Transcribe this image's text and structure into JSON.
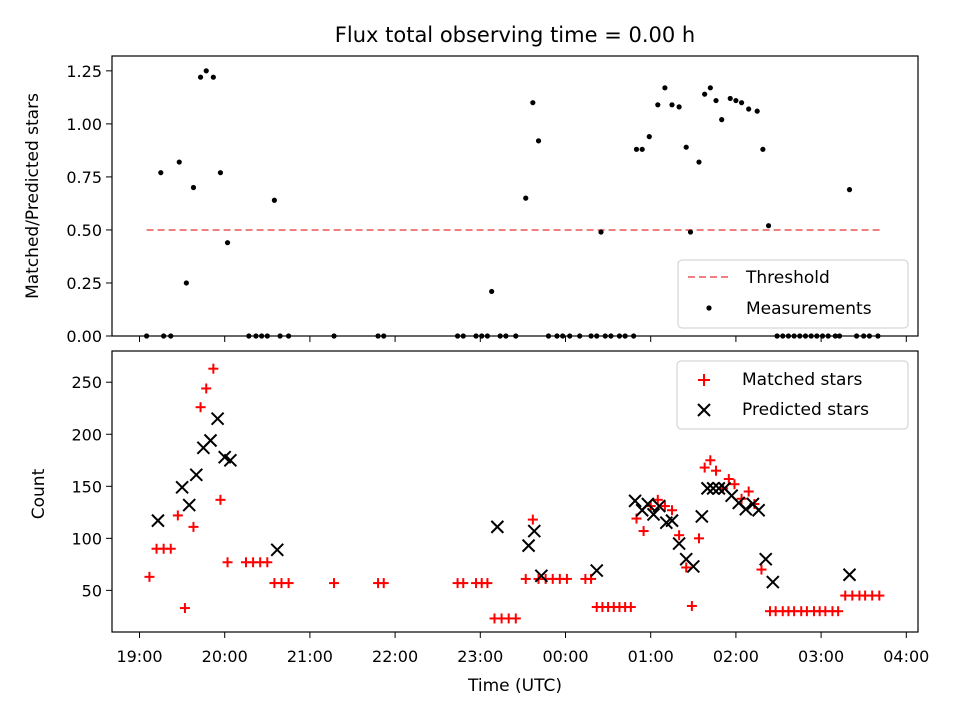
{
  "chart_data": [
    {
      "type": "scatter",
      "title": "Flux total observing time = 0.00 h",
      "xlabel": "",
      "ylabel": "Matched/Predicted stars",
      "ylim": [
        0,
        1.32
      ],
      "yticks": [
        0,
        0.25,
        0.5,
        0.75,
        1.0,
        1.25
      ],
      "ytick_labels": [
        "0.00",
        "0.25",
        "0.50",
        "0.75",
        "1.00",
        "1.25"
      ],
      "legend_position": "lower-right",
      "threshold": {
        "name": "Threshold",
        "value": 0.5,
        "x_range": [
          "19:05",
          "23:55",
          "03:42"
        ],
        "color": "#f08080"
      },
      "series": [
        {
          "name": "Measurements",
          "color": "#000000",
          "marker": "dot",
          "points": [
            [
              "19:05",
              0
            ],
            [
              "19:15",
              0.77
            ],
            [
              "19:17",
              0
            ],
            [
              "19:22",
              0
            ],
            [
              "19:28",
              0.82
            ],
            [
              "19:33",
              0.25
            ],
            [
              "19:38",
              0.7
            ],
            [
              "19:43",
              1.22
            ],
            [
              "19:47",
              1.25
            ],
            [
              "19:52",
              1.22
            ],
            [
              "19:57",
              0.77
            ],
            [
              "20:02",
              0.44
            ],
            [
              "20:17",
              0
            ],
            [
              "20:22",
              0
            ],
            [
              "20:26",
              0
            ],
            [
              "20:30",
              0
            ],
            [
              "20:35",
              0.64
            ],
            [
              "20:39",
              0
            ],
            [
              "20:45",
              0
            ],
            [
              "21:17",
              0
            ],
            [
              "21:48",
              0
            ],
            [
              "21:52",
              0
            ],
            [
              "22:44",
              0
            ],
            [
              "22:48",
              0
            ],
            [
              "22:57",
              0
            ],
            [
              "23:01",
              0
            ],
            [
              "23:05",
              0
            ],
            [
              "23:08",
              0.21
            ],
            [
              "23:14",
              0
            ],
            [
              "23:18",
              0
            ],
            [
              "23:25",
              0
            ],
            [
              "23:32",
              0.65
            ],
            [
              "23:37",
              1.1
            ],
            [
              "23:41",
              0.92
            ],
            [
              "23:48",
              0
            ],
            [
              "23:54",
              0
            ],
            [
              "23:58",
              0
            ],
            [
              "00:03",
              0
            ],
            [
              "00:10",
              0
            ],
            [
              "00:18",
              0
            ],
            [
              "00:22",
              0
            ],
            [
              "00:25",
              0.49
            ],
            [
              "00:28",
              0
            ],
            [
              "00:32",
              0
            ],
            [
              "00:38",
              0
            ],
            [
              "00:42",
              0
            ],
            [
              "00:48",
              0
            ],
            [
              "00:50",
              0.88
            ],
            [
              "00:54",
              0.88
            ],
            [
              "00:59",
              0.94
            ],
            [
              "01:05",
              1.09
            ],
            [
              "01:10",
              1.17
            ],
            [
              "01:15",
              1.09
            ],
            [
              "01:20",
              1.08
            ],
            [
              "01:25",
              0.89
            ],
            [
              "01:28",
              0.49
            ],
            [
              "01:34",
              0.82
            ],
            [
              "01:38",
              1.14
            ],
            [
              "01:42",
              1.17
            ],
            [
              "01:46",
              1.11
            ],
            [
              "01:50",
              1.02
            ],
            [
              "01:56",
              1.12
            ],
            [
              "02:00",
              1.11
            ],
            [
              "02:04",
              1.1
            ],
            [
              "02:09",
              1.07
            ],
            [
              "02:15",
              1.06
            ],
            [
              "02:19",
              0.88
            ],
            [
              "02:23",
              0.52
            ],
            [
              "02:29",
              0
            ],
            [
              "02:33",
              0
            ],
            [
              "02:37",
              0
            ],
            [
              "02:41",
              0
            ],
            [
              "02:45",
              0
            ],
            [
              "02:49",
              0
            ],
            [
              "02:53",
              0
            ],
            [
              "02:57",
              0
            ],
            [
              "03:01",
              0
            ],
            [
              "03:05",
              0
            ],
            [
              "03:10",
              0
            ],
            [
              "03:13",
              0
            ],
            [
              "03:20",
              0.69
            ],
            [
              "03:25",
              0
            ],
            [
              "03:30",
              0
            ],
            [
              "03:34",
              0
            ],
            [
              "03:40",
              0
            ]
          ]
        }
      ]
    },
    {
      "type": "scatter",
      "title": "",
      "xlabel": "Time (UTC)",
      "ylabel": "Count",
      "ylim": [
        10,
        280
      ],
      "yticks": [
        50,
        100,
        150,
        200,
        250
      ],
      "xticks": [
        "19:00",
        "20:00",
        "21:00",
        "22:00",
        "23:00",
        "00:00",
        "01:00",
        "02:00",
        "03:00",
        "04:00"
      ],
      "legend_position": "top-right",
      "series": [
        {
          "name": "Matched stars",
          "color": "#ff0000",
          "marker": "plus",
          "points": [
            [
              "19:07",
              63
            ],
            [
              "19:12",
              90
            ],
            [
              "19:17",
              90
            ],
            [
              "19:22",
              90
            ],
            [
              "19:27",
              122
            ],
            [
              "19:32",
              33
            ],
            [
              "19:38",
              111
            ],
            [
              "19:43",
              226
            ],
            [
              "19:47",
              244
            ],
            [
              "19:52",
              263
            ],
            [
              "19:57",
              137
            ],
            [
              "20:02",
              77
            ],
            [
              "20:15",
              77
            ],
            [
              "20:20",
              77
            ],
            [
              "20:25",
              77
            ],
            [
              "20:30",
              77
            ],
            [
              "20:35",
              57
            ],
            [
              "20:40",
              57
            ],
            [
              "20:45",
              57
            ],
            [
              "21:17",
              57
            ],
            [
              "21:48",
              57
            ],
            [
              "21:52",
              57
            ],
            [
              "22:44",
              57
            ],
            [
              "22:48",
              57
            ],
            [
              "22:57",
              57
            ],
            [
              "23:01",
              57
            ],
            [
              "23:05",
              57
            ],
            [
              "23:10",
              23
            ],
            [
              "23:15",
              23
            ],
            [
              "23:20",
              23
            ],
            [
              "23:25",
              23
            ],
            [
              "23:32",
              61
            ],
            [
              "23:37",
              118
            ],
            [
              "23:41",
              61
            ],
            [
              "23:46",
              61
            ],
            [
              "23:51",
              61
            ],
            [
              "23:56",
              61
            ],
            [
              "00:01",
              61
            ],
            [
              "00:14",
              61
            ],
            [
              "00:18",
              61
            ],
            [
              "00:22",
              34
            ],
            [
              "00:26",
              34
            ],
            [
              "00:30",
              34
            ],
            [
              "00:34",
              34
            ],
            [
              "00:38",
              34
            ],
            [
              "00:42",
              34
            ],
            [
              "00:46",
              34
            ],
            [
              "00:50",
              119
            ],
            [
              "00:55",
              107
            ],
            [
              "01:00",
              131
            ],
            [
              "01:05",
              137
            ],
            [
              "01:10",
              131
            ],
            [
              "01:15",
              127
            ],
            [
              "01:20",
              103
            ],
            [
              "01:25",
              72
            ],
            [
              "01:29",
              35
            ],
            [
              "01:34",
              100
            ],
            [
              "01:38",
              168
            ],
            [
              "01:42",
              175
            ],
            [
              "01:46",
              165
            ],
            [
              "01:51",
              148
            ],
            [
              "01:55",
              157
            ],
            [
              "01:59",
              152
            ],
            [
              "02:04",
              138
            ],
            [
              "02:09",
              145
            ],
            [
              "02:13",
              133
            ],
            [
              "02:18",
              70
            ],
            [
              "02:24",
              30
            ],
            [
              "02:28",
              30
            ],
            [
              "02:33",
              30
            ],
            [
              "02:37",
              30
            ],
            [
              "02:41",
              30
            ],
            [
              "02:46",
              30
            ],
            [
              "02:50",
              30
            ],
            [
              "02:55",
              30
            ],
            [
              "02:59",
              30
            ],
            [
              "03:03",
              30
            ],
            [
              "03:08",
              30
            ],
            [
              "03:12",
              30
            ],
            [
              "03:17",
              45
            ],
            [
              "03:22",
              45
            ],
            [
              "03:27",
              45
            ],
            [
              "03:31",
              45
            ],
            [
              "03:36",
              45
            ],
            [
              "03:41",
              45
            ]
          ]
        },
        {
          "name": "Predicted stars",
          "color": "#000000",
          "marker": "x",
          "points": [
            [
              "19:13",
              117
            ],
            [
              "19:30",
              149
            ],
            [
              "19:35",
              132
            ],
            [
              "19:40",
              161
            ],
            [
              "19:45",
              187
            ],
            [
              "19:50",
              194
            ],
            [
              "19:55",
              215
            ],
            [
              "20:00",
              178
            ],
            [
              "20:04",
              175
            ],
            [
              "20:37",
              89
            ],
            [
              "23:12",
              111
            ],
            [
              "23:34",
              93
            ],
            [
              "23:38",
              107
            ],
            [
              "23:43",
              64
            ],
            [
              "00:22",
              69
            ],
            [
              "00:49",
              136
            ],
            [
              "00:54",
              127
            ],
            [
              "00:58",
              133
            ],
            [
              "01:02",
              123
            ],
            [
              "01:06",
              131
            ],
            [
              "01:11",
              115
            ],
            [
              "01:15",
              117
            ],
            [
              "01:20",
              95
            ],
            [
              "01:25",
              80
            ],
            [
              "01:30",
              73
            ],
            [
              "01:36",
              121
            ],
            [
              "01:40",
              148
            ],
            [
              "01:44",
              148
            ],
            [
              "01:48",
              148
            ],
            [
              "01:52",
              148
            ],
            [
              "01:57",
              141
            ],
            [
              "02:02",
              134
            ],
            [
              "02:07",
              128
            ],
            [
              "02:12",
              133
            ],
            [
              "02:16",
              127
            ],
            [
              "02:21",
              80
            ],
            [
              "02:26",
              58
            ],
            [
              "03:20",
              65
            ]
          ]
        }
      ]
    }
  ]
}
